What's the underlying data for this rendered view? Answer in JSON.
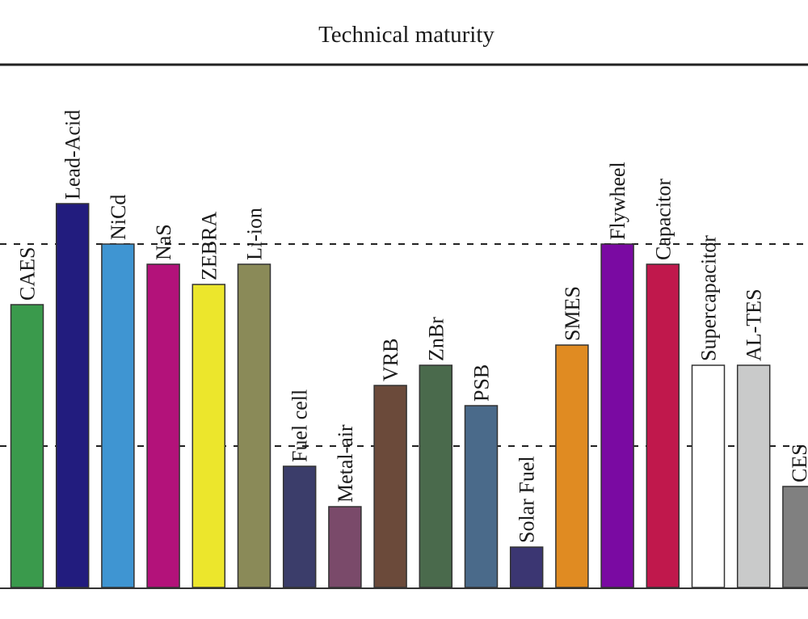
{
  "chart_data": {
    "type": "bar",
    "title": "Technical maturity",
    "xlabel": "",
    "ylabel": "",
    "ylim": [
      0,
      26
    ],
    "reference_lines": [
      7,
      17
    ],
    "categories": [
      "CAES",
      "Lead-Acid",
      "NiCd",
      "NaS",
      "ZEBRA",
      "Li-ion",
      "Fuel cell",
      "Metal-air",
      "VRB",
      "ZnBr",
      "PSB",
      "Solar Fuel",
      "SMES",
      "Flywheel",
      "Capacitor",
      "Supercapacitor",
      "AL-TES",
      "CES"
    ],
    "values": [
      14,
      19,
      17,
      16,
      15,
      16,
      6,
      4,
      10,
      11,
      9,
      2,
      12,
      17,
      16,
      11,
      11,
      5
    ],
    "colors": [
      "#3a9a4c",
      "#221c7e",
      "#3f95d2",
      "#b3127a",
      "#ece62c",
      "#8a8a58",
      "#3b3d6a",
      "#7a4a6a",
      "#6b4a3a",
      "#4a6a4c",
      "#4a6a8a",
      "#3b3672",
      "#e08b22",
      "#7a0aa2",
      "#c0184c",
      "#ffffff",
      "#c9caca",
      "#808080"
    ]
  }
}
